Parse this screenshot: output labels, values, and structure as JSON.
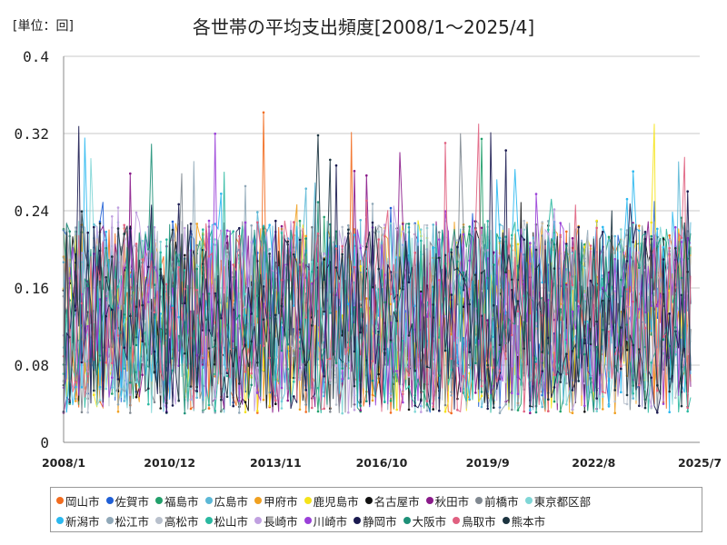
{
  "chart_data": {
    "type": "line",
    "title": "各世帯の平均支出頻度[2008/1～2025/4]",
    "unit_label": "[単位：回]",
    "ylim": [
      0,
      0.4
    ],
    "y_ticks": [
      "0",
      "0.08",
      "0.16",
      "0.24",
      "0.32",
      "0.4"
    ],
    "x_ticks": [
      "2008/1",
      "2010/12",
      "2013/11",
      "2016/10",
      "2019/9",
      "2022/8",
      "2025/7"
    ],
    "x_start": "2008/1",
    "x_end": "2025/7",
    "grid": true,
    "legend_position": "bottom",
    "series": [
      {
        "name": "岡山市",
        "color": "#f26c1f"
      },
      {
        "name": "佐賀市",
        "color": "#1f5fd6"
      },
      {
        "name": "福島市",
        "color": "#22a06b"
      },
      {
        "name": "広島市",
        "color": "#5cb8d6"
      },
      {
        "name": "甲府市",
        "color": "#f0a020"
      },
      {
        "name": "鹿児島市",
        "color": "#f5e31a"
      },
      {
        "name": "名古屋市",
        "color": "#111111"
      },
      {
        "name": "秋田市",
        "color": "#8a1a8a"
      },
      {
        "name": "前橋市",
        "color": "#808890"
      },
      {
        "name": "東京都区部",
        "color": "#7fd6d6"
      },
      {
        "name": "新潟市",
        "color": "#2ab8f0"
      },
      {
        "name": "松江市",
        "color": "#90a8b8"
      },
      {
        "name": "高松市",
        "color": "#b8c0cc"
      },
      {
        "name": "松山市",
        "color": "#2ab8a0"
      },
      {
        "name": "長崎市",
        "color": "#c0a0e0"
      },
      {
        "name": "川崎市",
        "color": "#9a40d8"
      },
      {
        "name": "静岡市",
        "color": "#1a1a50"
      },
      {
        "name": "大阪市",
        "color": "#1e9078"
      },
      {
        "name": "鳥取市",
        "color": "#e06080"
      },
      {
        "name": "熊本市",
        "color": "#1c3440"
      }
    ]
  }
}
